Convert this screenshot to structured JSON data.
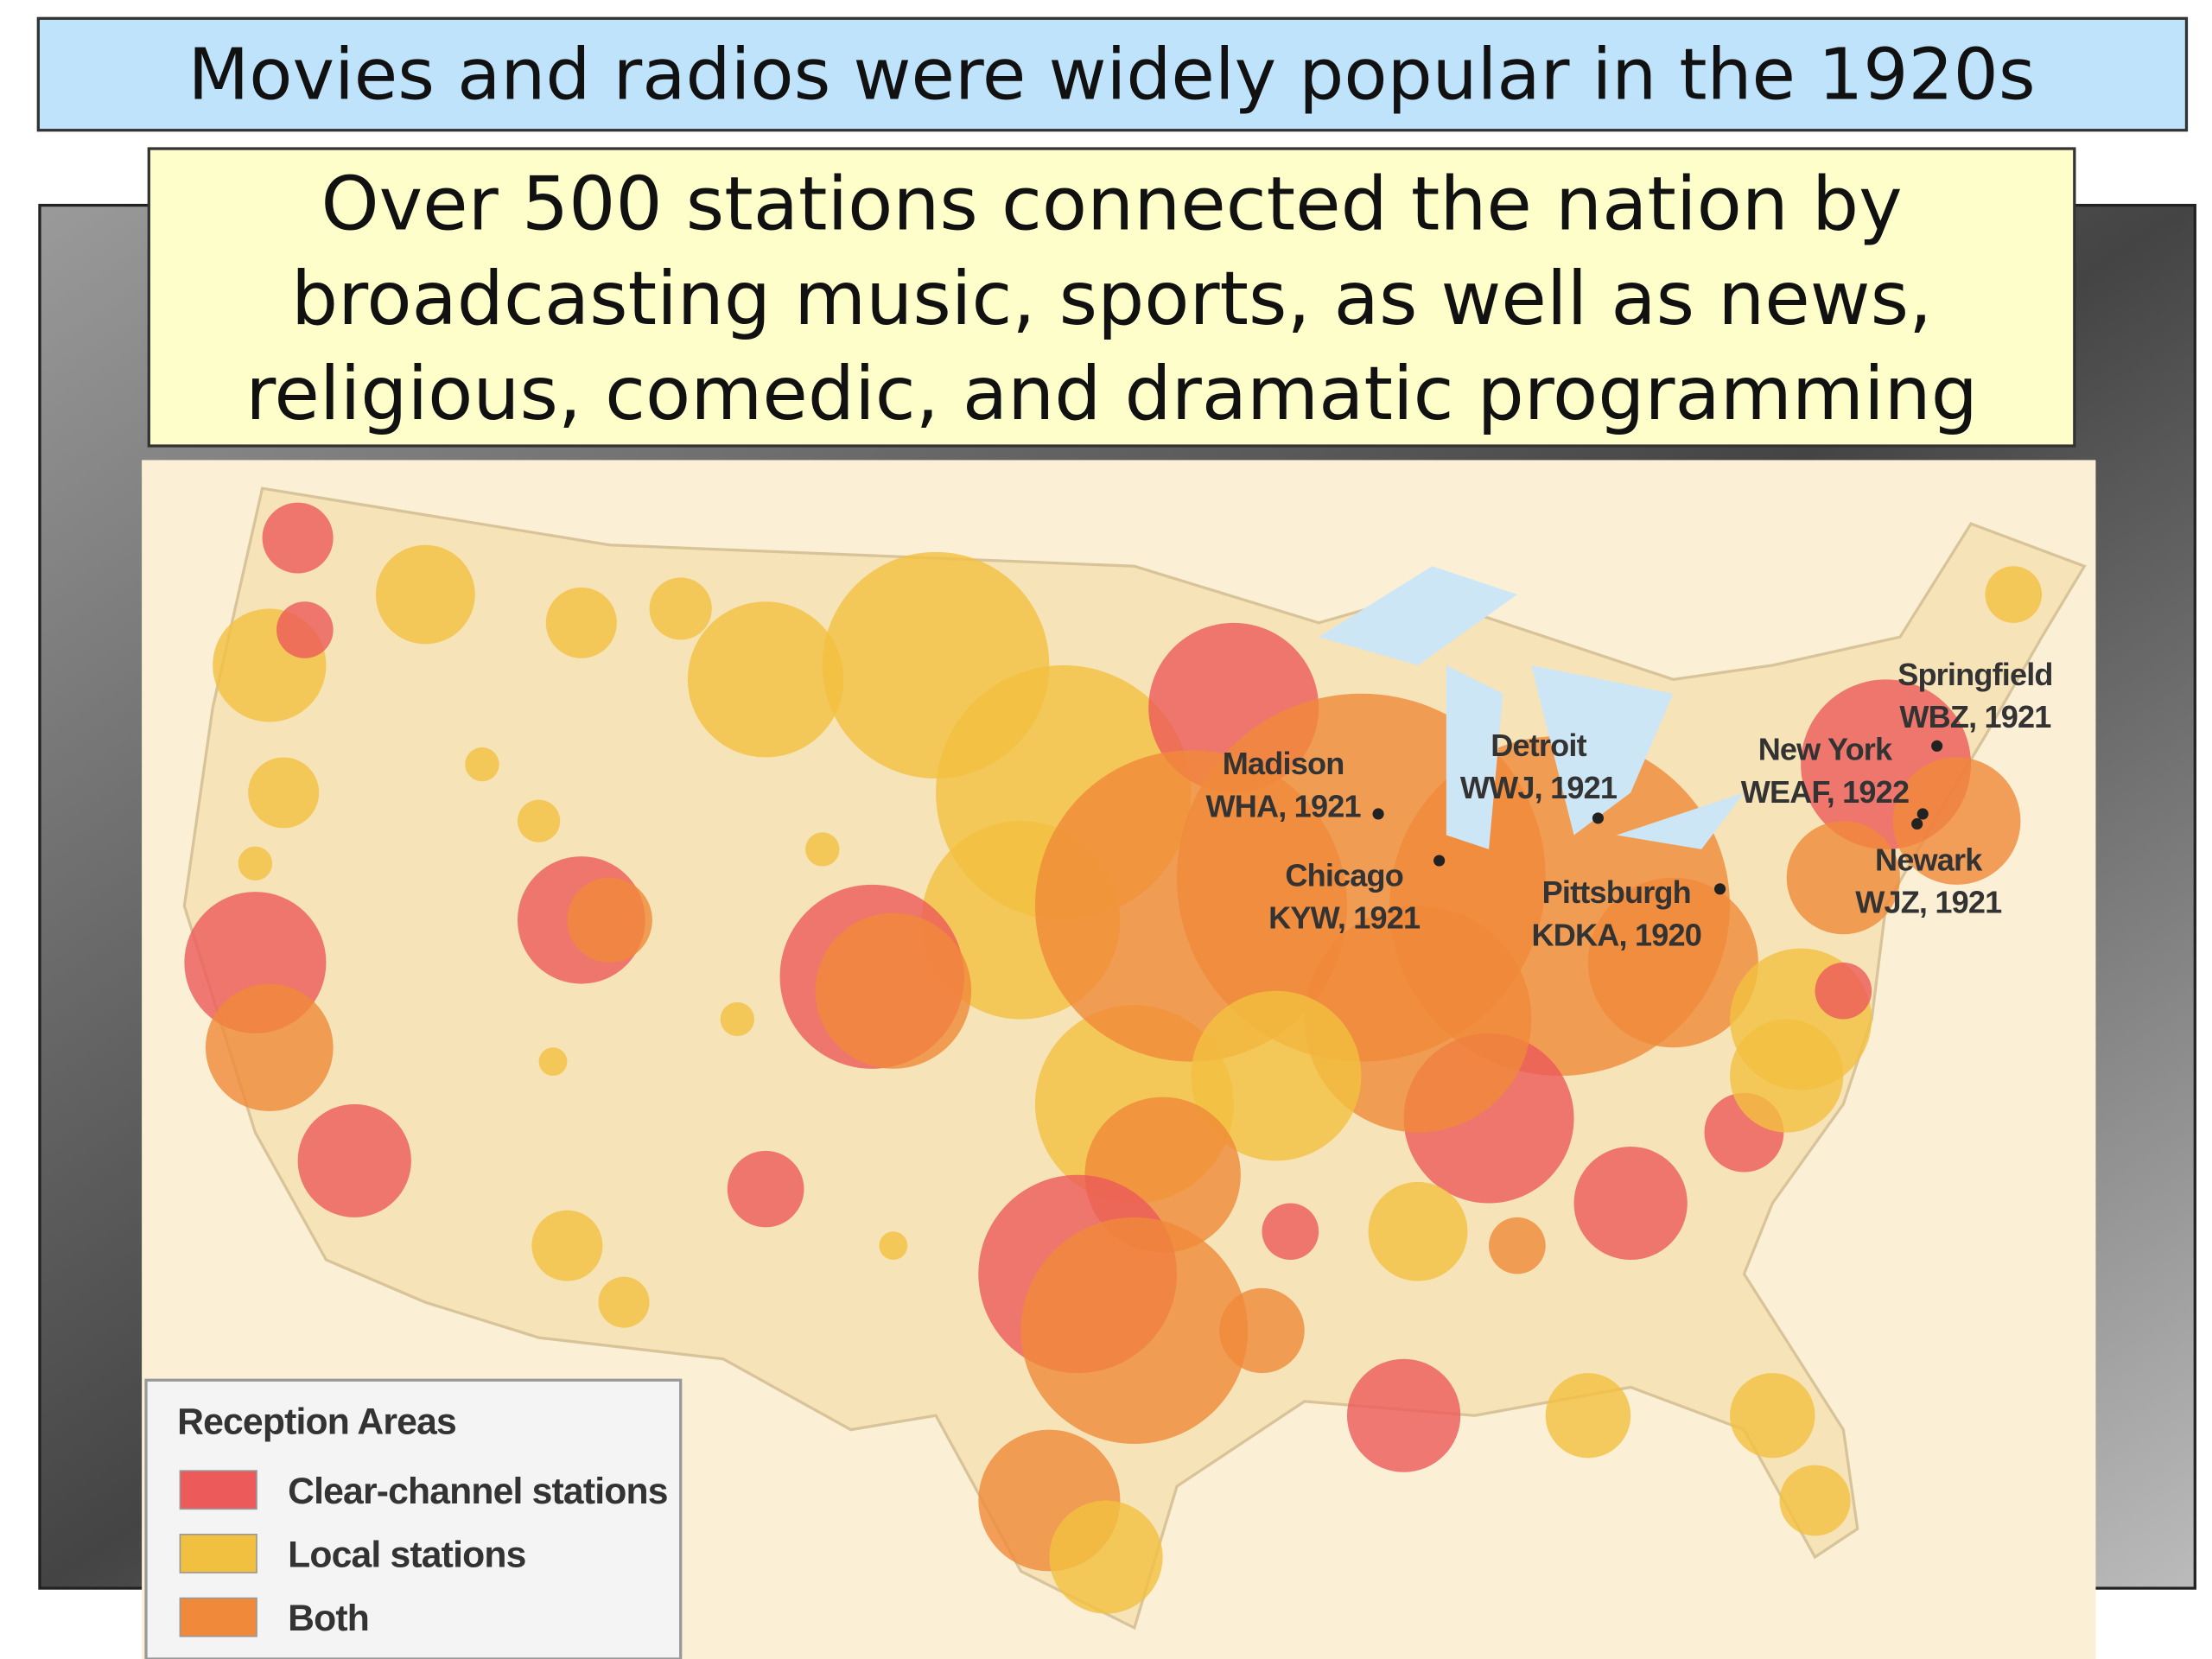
{
  "header": {
    "title": "Movies and radios were widely popular in the 1920s"
  },
  "subtitle": {
    "lines": [
      "Over 500 stations connected the nation by",
      "broadcasting music, sports, as well as news,",
      "religious, comedic, and dramatic programming"
    ]
  },
  "map": {
    "legend": {
      "title": "Reception Areas",
      "items": [
        "Clear-channel stations",
        "Local stations",
        "Both"
      ]
    },
    "cities": [
      {
        "name": "Madison",
        "station": "WHA, 1921"
      },
      {
        "name": "Chicago",
        "station": "KYW, 1921"
      },
      {
        "name": "Detroit",
        "station": "WWJ, 1921"
      },
      {
        "name": "Pittsburgh",
        "station": "KDKA, 1920"
      },
      {
        "name": "New York",
        "station": "WEAF, 1922"
      },
      {
        "name": "Springfield",
        "station": "WBZ, 1921"
      },
      {
        "name": "Newark",
        "station": "WJZ, 1921"
      }
    ]
  }
}
